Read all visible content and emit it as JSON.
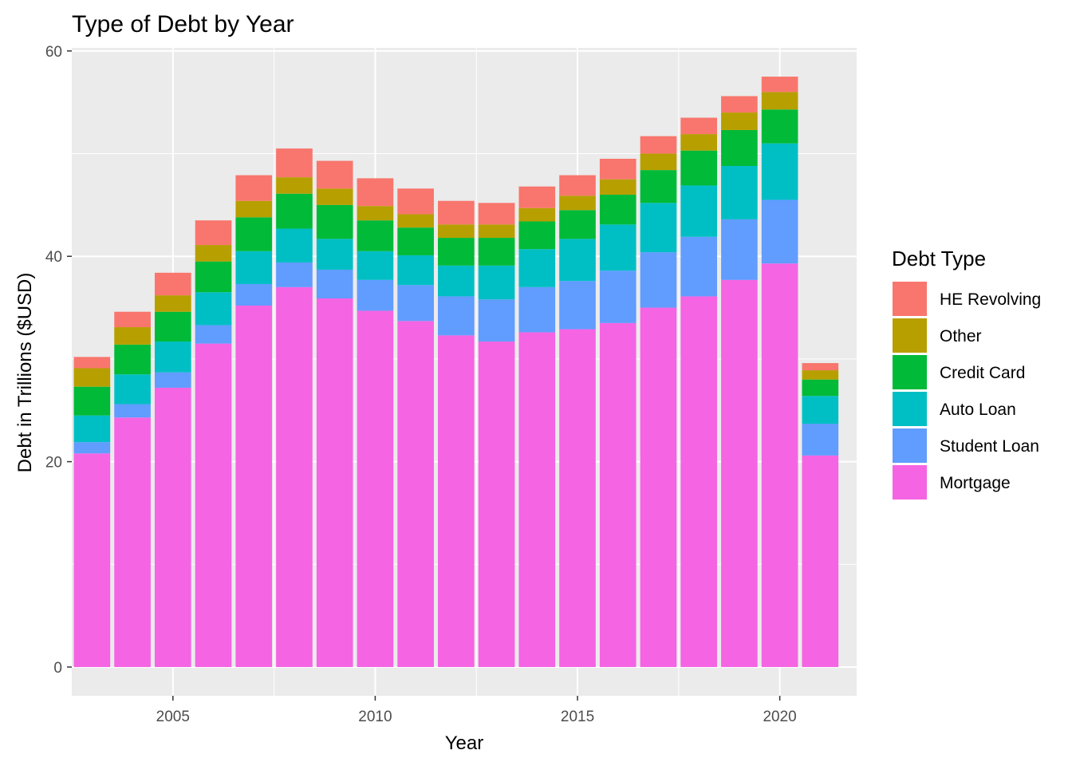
{
  "chart_data": {
    "type": "bar",
    "stacked": true,
    "title": "Type of Debt by Year",
    "xlabel": "Year",
    "ylabel": "Debt in Trillions ($USD)",
    "x": [
      2003,
      2004,
      2005,
      2006,
      2007,
      2008,
      2009,
      2010,
      2011,
      2012,
      2013,
      2014,
      2015,
      2016,
      2017,
      2018,
      2019,
      2020,
      2021
    ],
    "xlim": [
      2002.5,
      2021.9
    ],
    "ylim": [
      -2.8,
      60.3
    ],
    "x_ticks": [
      2005,
      2010,
      2015,
      2020
    ],
    "y_ticks": [
      0,
      20,
      40,
      60
    ],
    "grid": true,
    "legend": {
      "title": "Debt Type",
      "position": "right"
    },
    "series": [
      {
        "name": "Mortgage",
        "color": "#F564E3",
        "values": [
          20.8,
          24.3,
          27.2,
          31.5,
          35.2,
          37.0,
          35.9,
          34.7,
          33.7,
          32.3,
          31.7,
          32.6,
          32.9,
          33.5,
          35.0,
          36.1,
          37.7,
          39.3,
          20.6
        ]
      },
      {
        "name": "Student Loan",
        "color": "#619CFF",
        "values": [
          1.1,
          1.3,
          1.5,
          1.8,
          2.1,
          2.4,
          2.8,
          3.0,
          3.5,
          3.8,
          4.1,
          4.4,
          4.7,
          5.1,
          5.4,
          5.8,
          5.9,
          6.2,
          3.1
        ]
      },
      {
        "name": "Auto Loan",
        "color": "#00BFC4",
        "values": [
          2.6,
          2.9,
          3.0,
          3.2,
          3.2,
          3.3,
          3.0,
          2.8,
          2.9,
          3.0,
          3.3,
          3.7,
          4.1,
          4.5,
          4.8,
          5.0,
          5.2,
          5.5,
          2.7
        ]
      },
      {
        "name": "Credit Card",
        "color": "#00BA38",
        "values": [
          2.8,
          2.9,
          2.9,
          3.0,
          3.3,
          3.4,
          3.3,
          3.0,
          2.7,
          2.7,
          2.7,
          2.7,
          2.8,
          2.9,
          3.2,
          3.4,
          3.5,
          3.3,
          1.6
        ]
      },
      {
        "name": "Other",
        "color": "#B79F00",
        "values": [
          1.8,
          1.7,
          1.6,
          1.6,
          1.6,
          1.6,
          1.6,
          1.4,
          1.3,
          1.3,
          1.3,
          1.3,
          1.4,
          1.5,
          1.6,
          1.6,
          1.7,
          1.7,
          0.9
        ]
      },
      {
        "name": "HE Revolving",
        "color": "#F8766D",
        "values": [
          1.1,
          1.5,
          2.2,
          2.4,
          2.5,
          2.8,
          2.7,
          2.7,
          2.5,
          2.3,
          2.1,
          2.1,
          2.0,
          2.0,
          1.7,
          1.6,
          1.6,
          1.5,
          0.7
        ]
      }
    ]
  }
}
